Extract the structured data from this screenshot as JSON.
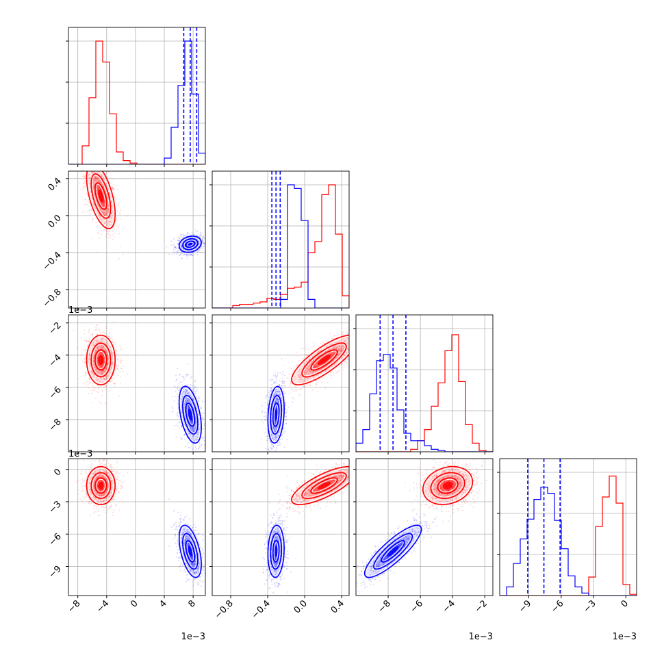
{
  "chart_data": {
    "type": "corner",
    "colors": {
      "series_a": "#ff0000",
      "series_b": "#0000ff"
    },
    "grid": true,
    "series": [
      {
        "color": "#ff0000",
        "centers": [
          -0.0048,
          0.21,
          -0.0043,
          -0.0015
        ],
        "sigmas": [
          0.0009,
          0.16,
          0.0007,
          0.0008
        ]
      },
      {
        "color": "#0000ff",
        "centers": [
          0.0076,
          -0.31,
          -0.0077,
          -0.0076
        ],
        "sigmas": [
          0.0007,
          0.04,
          0.0008,
          0.0011
        ]
      }
    ],
    "quantile_lines": {
      "color": "#0000ff",
      "values": [
        [
          0.0067,
          0.0076,
          0.0085
        ],
        [
          -0.355,
          -0.31,
          -0.265
        ],
        [
          -0.0085,
          -0.0077,
          -0.0069
        ],
        [
          -0.0091,
          -0.0076,
          -0.0061
        ]
      ]
    },
    "parameters": [
      {
        "range": [
          -0.0093,
          0.0097
        ],
        "ticks": [
          -0.008,
          -0.004,
          0.0,
          0.004,
          0.008
        ],
        "tick_labels": [
          "−8",
          "−4",
          "0",
          "4",
          "8"
        ],
        "offset_text": "1e−3"
      },
      {
        "range": [
          -1.0,
          0.48
        ],
        "ticks": [
          -0.8,
          -0.4,
          0.0,
          0.4
        ],
        "tick_labels": [
          "−0.8",
          "−0.4",
          "0.0",
          "0.4"
        ],
        "offset_text": ""
      },
      {
        "range": [
          -0.01,
          -0.0015
        ],
        "ticks": [
          -0.008,
          -0.006,
          -0.004,
          -0.002
        ],
        "tick_labels": [
          "−8",
          "−6",
          "−4",
          "−2"
        ],
        "offset_text": "1e−3"
      },
      {
        "range": [
          -0.0117,
          0.001
        ],
        "ticks": [
          -0.009,
          -0.006,
          -0.003,
          0.0
        ],
        "tick_labels": [
          "−9",
          "−6",
          "−3",
          "0"
        ],
        "offset_text": "1e−3"
      }
    ],
    "histograms": {
      "red": [
        [
          0,
          0,
          0.15,
          0.54,
          1,
          0.83,
          0.41,
          0.1,
          0.03,
          0.01,
          0,
          0,
          0,
          0,
          0,
          0,
          0,
          0,
          0,
          0
        ],
        [
          0,
          0,
          0,
          0.02,
          0.03,
          0.03,
          0.04,
          0.05,
          0.08,
          0.07,
          0.11,
          0.16,
          0.17,
          0.21,
          0.45,
          0.54,
          0.92,
          1,
          0.6,
          0.1
        ],
        [
          0,
          0,
          0,
          0,
          0,
          0,
          0,
          0,
          0.02,
          0.09,
          0.18,
          0.37,
          0.56,
          0.82,
          0.95,
          0.57,
          0.22,
          0.07,
          0.01,
          0
        ],
        [
          0,
          0,
          0,
          0,
          0,
          0,
          0,
          0,
          0,
          0,
          0,
          0,
          0,
          0.15,
          0.56,
          0.8,
          0.97,
          0.75,
          0.09,
          0.01
        ]
      ],
      "blue": [
        [
          0,
          0,
          0,
          0,
          0,
          0,
          0,
          0,
          0,
          0,
          0,
          0,
          0,
          0,
          0.05,
          0.3,
          0.64,
          1,
          0.57,
          0.09
        ],
        [
          0,
          0,
          0,
          0,
          0,
          0,
          0,
          0,
          0,
          0,
          0.07,
          1,
          0.97,
          0.71,
          0.07,
          0,
          0,
          0,
          0,
          0
        ],
        [
          0.07,
          0.18,
          0.47,
          0.74,
          0.79,
          0.68,
          0.34,
          0.15,
          0.09,
          0.09,
          0.05,
          0.02,
          0.01,
          0,
          0,
          0,
          0,
          0,
          0,
          0
        ],
        [
          0,
          0.07,
          0.26,
          0.46,
          0.62,
          0.78,
          0.88,
          0.83,
          0.61,
          0.38,
          0.16,
          0.07,
          0.02,
          0,
          0,
          0,
          0,
          0,
          0,
          0
        ]
      ]
    },
    "contour_panels": [
      {
        "row": 1,
        "col": 0
      },
      {
        "row": 2,
        "col": 0
      },
      {
        "row": 2,
        "col": 1
      },
      {
        "row": 3,
        "col": 0
      },
      {
        "row": 3,
        "col": 1
      },
      {
        "row": 3,
        "col": 2
      }
    ],
    "correlations": {
      "red": {
        "1-0": -0.55,
        "2-0": 0.0,
        "2-1": 0.8,
        "3-0": 0.0,
        "3-1": 0.75,
        "3-2": 0.2
      },
      "blue": {
        "1-0": 0.2,
        "2-0": -0.45,
        "2-1": 0.2,
        "3-0": -0.5,
        "3-1": 0.1,
        "3-2": 0.85
      }
    }
  }
}
